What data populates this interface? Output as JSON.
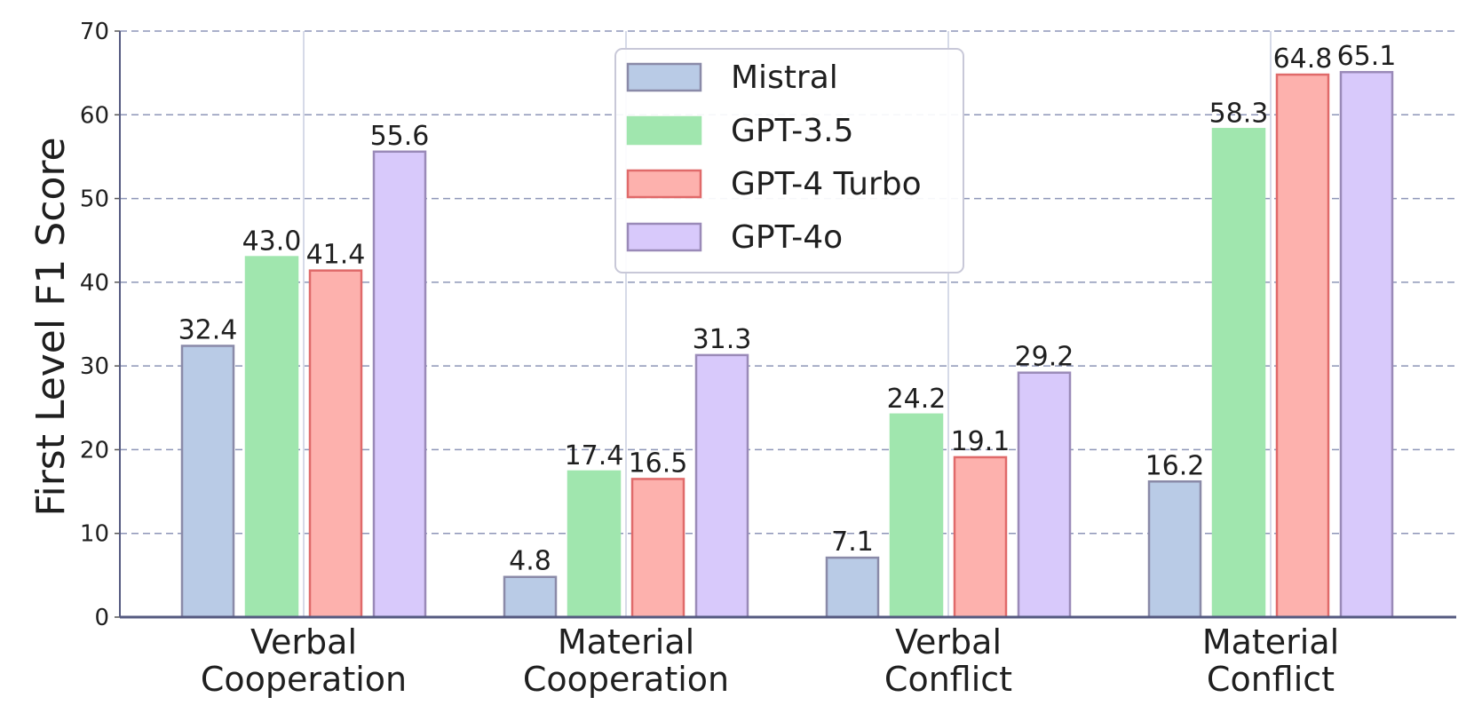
{
  "chart_data": {
    "type": "bar",
    "title": "",
    "xlabel": "",
    "ylabel": "First Level F1 Score",
    "ylim": [
      0,
      70
    ],
    "yticks": [
      0,
      10,
      20,
      30,
      40,
      50,
      60,
      70
    ],
    "grid": true,
    "legend_position": "top-center",
    "categories": [
      [
        "Verbal",
        "Cooperation"
      ],
      [
        "Material",
        "Cooperation"
      ],
      [
        "Verbal",
        "Conflict"
      ],
      [
        "Material",
        "Conflict"
      ]
    ],
    "series": [
      {
        "name": "Mistral",
        "values": [
          32.4,
          4.8,
          7.1,
          16.2
        ],
        "color": "#b9cbe6",
        "edge": "#8a8aa8"
      },
      {
        "name": "GPT-3.5",
        "values": [
          43.0,
          17.4,
          24.2,
          58.3
        ],
        "color": "#a0e6ae",
        "edge": "#a0e6ae"
      },
      {
        "name": "GPT-4 Turbo",
        "values": [
          41.4,
          16.5,
          19.1,
          64.8
        ],
        "color": "#fdb1ad",
        "edge": "#e06a6a"
      },
      {
        "name": "GPT-4o",
        "values": [
          55.6,
          31.3,
          29.2,
          65.1
        ],
        "color": "#d8c9fb",
        "edge": "#9a8ab8"
      }
    ],
    "value_labels": [
      [
        "32.4",
        "4.8",
        "7.1",
        "16.2"
      ],
      [
        "43.0",
        "17.4",
        "24.2",
        "58.3"
      ],
      [
        "41.4",
        "16.5",
        "19.1",
        "64.8"
      ],
      [
        "55.6",
        "31.3",
        "29.2",
        "65.1"
      ]
    ]
  }
}
